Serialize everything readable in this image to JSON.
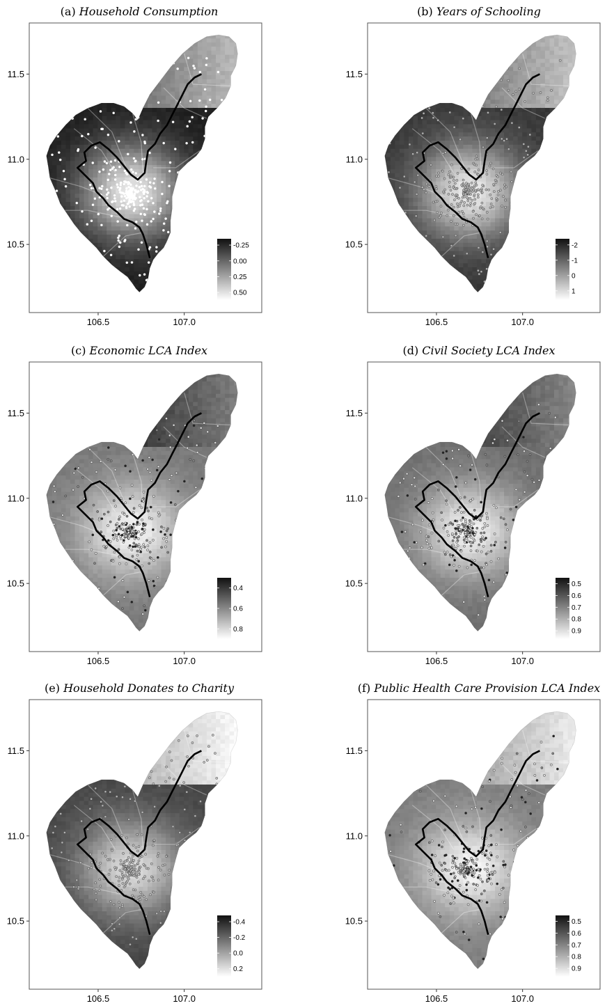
{
  "figure": {
    "x_ticks": [
      "106.5",
      "107.0"
    ],
    "y_ticks": [
      "11.5",
      "11.0",
      "10.5"
    ],
    "x_tick_values": [
      106.5,
      107.0
    ],
    "y_tick_values": [
      11.5,
      11.0,
      10.5
    ],
    "x_range": [
      106.1,
      107.45
    ],
    "y_range": [
      10.1,
      11.8
    ],
    "background_color": "#ffffff",
    "border_line_color": "#000000"
  },
  "panels": [
    {
      "id": "a",
      "prefix": "(a) ",
      "title": "Household Consumption",
      "legend": {
        "ticks": [
          "-0.25",
          "0.00",
          "0.25",
          "0.50"
        ],
        "values": [
          -0.25,
          0,
          0.25,
          0.5
        ],
        "range": [
          -0.35,
          0.62
        ]
      },
      "shade": {
        "base": 30,
        "center_light": 230,
        "north_gray": 150
      },
      "points": "white"
    },
    {
      "id": "b",
      "prefix": "(b) ",
      "title": "Years of Schooling",
      "legend": {
        "ticks": [
          "-2",
          "-1",
          "0",
          "1"
        ],
        "values": [
          -2,
          -1,
          0,
          1
        ],
        "range": [
          -2.4,
          1.6
        ]
      },
      "shade": {
        "base": 55,
        "center_light": 235,
        "north_gray": 160
      },
      "points": "gray"
    },
    {
      "id": "c",
      "prefix": "(c) ",
      "title": "Economic LCA Index",
      "legend": {
        "ticks": [
          "0.4",
          "0.6",
          "0.8"
        ],
        "values": [
          0.4,
          0.6,
          0.8
        ],
        "range": [
          0.3,
          0.9
        ]
      },
      "shade": {
        "base": 120,
        "center_light": 245,
        "north_gray": 90
      },
      "points": "mixed"
    },
    {
      "id": "d",
      "prefix": "(d) ",
      "title": "Civil Society LCA Index",
      "legend": {
        "ticks": [
          "0.5",
          "0.6",
          "0.7",
          "0.8",
          "0.9"
        ],
        "values": [
          0.5,
          0.6,
          0.7,
          0.8,
          0.9
        ],
        "range": [
          0.45,
          0.97
        ]
      },
      "shade": {
        "base": 110,
        "center_light": 240,
        "north_gray": 100
      },
      "points": "mixed"
    },
    {
      "id": "e",
      "prefix": "(e) ",
      "title": "Household Donates to Charity",
      "legend": {
        "ticks": [
          "-0.4",
          "-0.2",
          "0.0",
          "0.2"
        ],
        "values": [
          -0.4,
          -0.2,
          0,
          0.2
        ],
        "range": [
          -0.48,
          0.3
        ]
      },
      "shade": {
        "base": 70,
        "center_light": 220,
        "north_gray": 215
      },
      "points": "gray"
    },
    {
      "id": "f",
      "prefix": "(f) ",
      "title": "Public Health Care Provision LCA Index",
      "legend": {
        "ticks": [
          "0.5",
          "0.6",
          "0.7",
          "0.8",
          "0.9"
        ],
        "values": [
          0.5,
          0.6,
          0.7,
          0.8,
          0.9
        ],
        "range": [
          0.45,
          0.97
        ]
      },
      "shade": {
        "base": 125,
        "center_light": 245,
        "north_gray": 200
      },
      "points": "mixed"
    }
  ]
}
